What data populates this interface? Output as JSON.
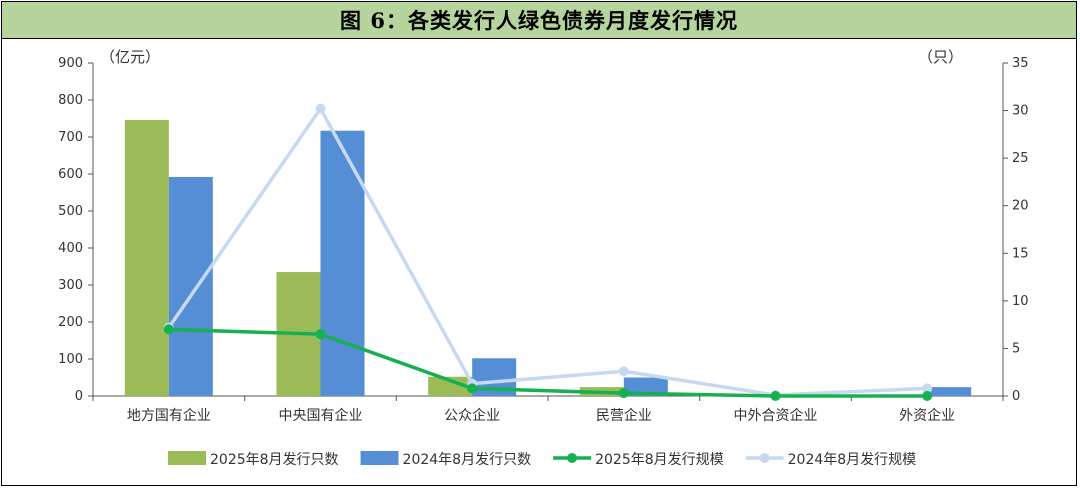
{
  "title": "图 6：各类发行人绿色债券月度发行情况",
  "chart_data": {
    "type": "bar",
    "categories": [
      "地方国有企业",
      "中央国有企业",
      "公众企业",
      "民营企业",
      "中外合资企业",
      "外资企业"
    ],
    "left_axis": {
      "unit_label": "（亿元）",
      "ylim": [
        0,
        900
      ],
      "ticks": [
        "0",
        "100",
        "200",
        "300",
        "400",
        "500",
        "600",
        "700",
        "800",
        "900"
      ]
    },
    "right_axis": {
      "unit_label": "（只）",
      "ylim": [
        0,
        35
      ],
      "ticks": [
        "0",
        "5",
        "10",
        "15",
        "20",
        "25",
        "30",
        "35"
      ]
    },
    "series": [
      {
        "name": "2025年8月发行只数",
        "kind": "bar",
        "axis": "left",
        "color": "#9bbb59",
        "values": [
          746,
          335,
          52,
          24,
          3,
          4
        ]
      },
      {
        "name": "2024年8月发行只数",
        "kind": "bar",
        "axis": "left",
        "color": "#558ed5",
        "values": [
          592,
          717,
          102,
          50,
          3,
          24
        ]
      },
      {
        "name": "2025年8月发行规模",
        "kind": "line",
        "axis": "right",
        "color": "#16b050",
        "values": [
          7.0,
          6.5,
          0.8,
          0.3,
          0.0,
          0.0
        ]
      },
      {
        "name": "2024年8月发行规模",
        "kind": "line",
        "axis": "right",
        "color": "#c6d9f1",
        "values": [
          7.2,
          30.2,
          1.3,
          2.6,
          0.1,
          0.8
        ]
      }
    ],
    "grid": false,
    "legend_position": "bottom"
  }
}
